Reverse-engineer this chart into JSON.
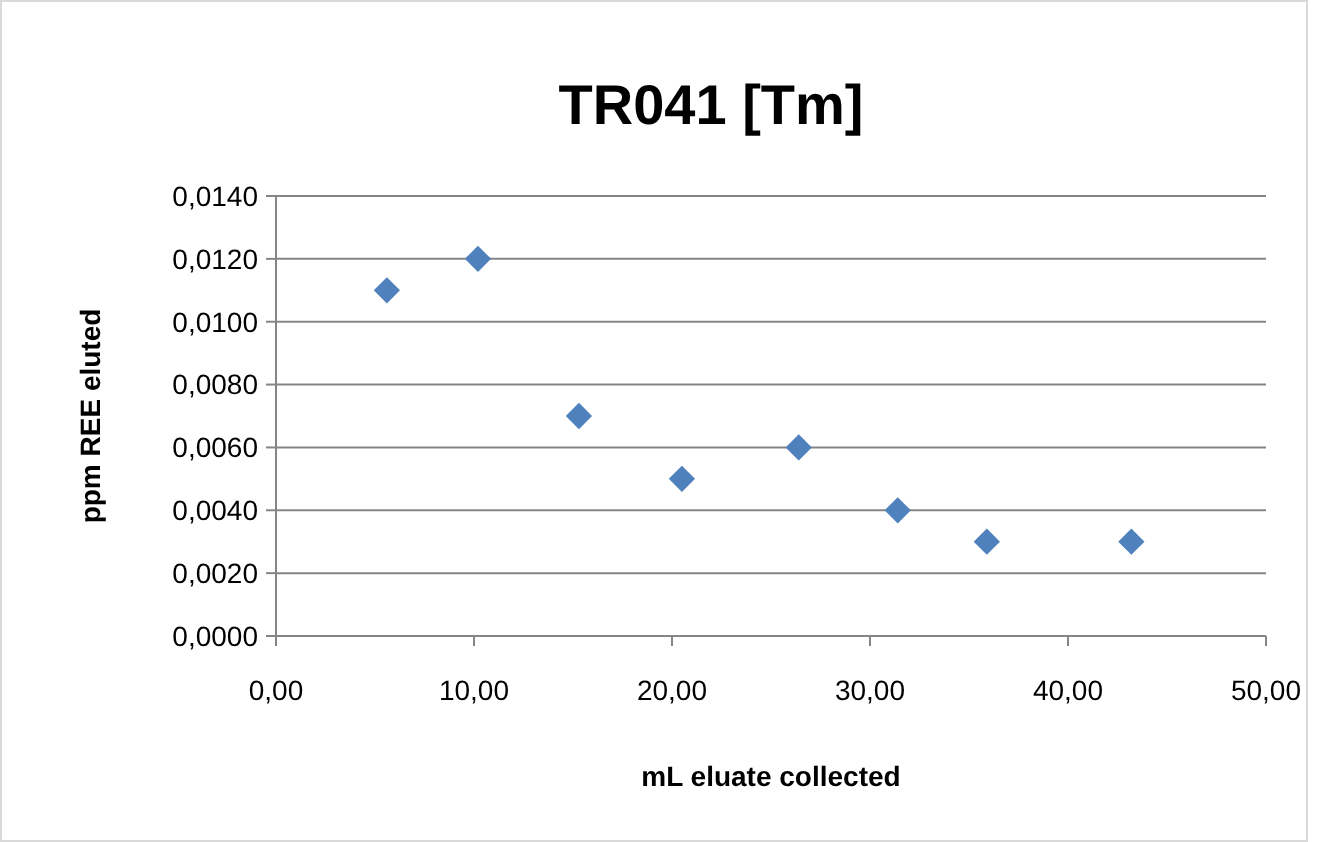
{
  "chart_data": {
    "type": "scatter",
    "title": "TR041 [Tm]",
    "xlabel": "mL eluate collected",
    "ylabel": "ppm REE  eluted",
    "x": [
      5.6,
      10.2,
      15.3,
      20.5,
      26.4,
      31.4,
      35.9,
      43.2
    ],
    "series": [
      {
        "color": "#4f81bd",
        "values": [
          0.011,
          0.012,
          0.007,
          0.005,
          0.006,
          0.004,
          0.003,
          0.003
        ]
      }
    ],
    "xlim": [
      0,
      50
    ],
    "xticks": [
      {
        "value": 0,
        "label": "0,00"
      },
      {
        "value": 10,
        "label": "10,00"
      },
      {
        "value": 20,
        "label": "20,00"
      },
      {
        "value": 30,
        "label": "30,00"
      },
      {
        "value": 40,
        "label": "40,00"
      },
      {
        "value": 50,
        "label": "50,00"
      }
    ],
    "ylim": [
      0,
      0.014
    ],
    "yticks": [
      {
        "value": 0,
        "label": "0,0000"
      },
      {
        "value": 0.002,
        "label": "0,0020"
      },
      {
        "value": 0.004,
        "label": "0,0040"
      },
      {
        "value": 0.006,
        "label": "0,0060"
      },
      {
        "value": 0.008,
        "label": "0,0080"
      },
      {
        "value": 0.01,
        "label": "0,0100"
      },
      {
        "value": 0.012,
        "label": "0,0120"
      },
      {
        "value": 0.014,
        "label": "0,0140"
      }
    ],
    "grid": "y",
    "marker": "diamond"
  }
}
